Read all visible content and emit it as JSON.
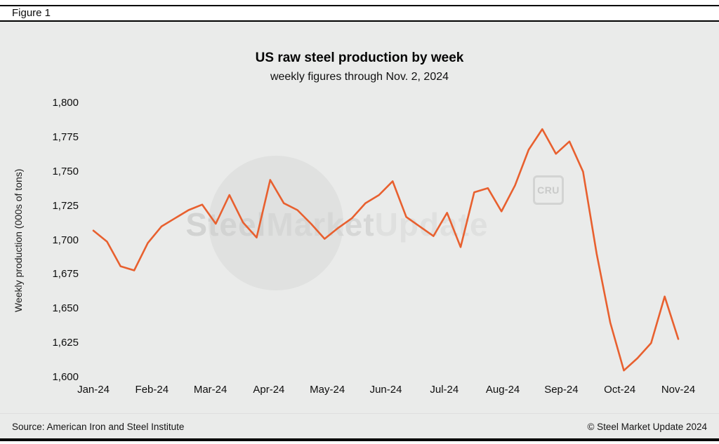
{
  "figure_label": "Figure 1",
  "footer": {
    "source": "Source: American Iron and Steel Institute",
    "copyright": "© Steel Market Update 2024"
  },
  "watermark": {
    "part1": "Steel",
    "part2": "Market",
    "part3": "Update",
    "badge": "CRU"
  },
  "colors": {
    "line": "#e8602f",
    "panel_background": "#eaebea",
    "text": "#0e0e0e",
    "watermark": "#d6d7d6"
  },
  "chart_data": {
    "type": "line",
    "title": "US raw steel production by week",
    "subtitle": "weekly figures through Nov. 2, 2024",
    "xlabel": "",
    "ylabel": "Weekly production (000s of tons)",
    "ylim": [
      1600,
      1800
    ],
    "y_ticks": [
      1600,
      1625,
      1650,
      1675,
      1700,
      1725,
      1750,
      1775,
      1800
    ],
    "x_tick_labels": [
      "Jan-24",
      "Feb-24",
      "Mar-24",
      "Apr-24",
      "May-24",
      "Jun-24",
      "Jul-24",
      "Aug-24",
      "Sep-24",
      "Oct-24",
      "Nov-24"
    ],
    "grid": false,
    "legend_position": "none",
    "series": [
      {
        "name": "US weekly raw steel production (000s of tons)",
        "x_unit": "week index, Jan-24 through Nov-24, evenly spaced",
        "values": [
          1707,
          1699,
          1681,
          1678,
          1698,
          1710,
          1716,
          1722,
          1726,
          1712,
          1733,
          1713,
          1702,
          1744,
          1727,
          1722,
          1712,
          1701,
          1709,
          1716,
          1727,
          1733,
          1743,
          1717,
          1710,
          1703,
          1720,
          1695,
          1735,
          1738,
          1721,
          1740,
          1766,
          1781,
          1763,
          1772,
          1750,
          1690,
          1640,
          1605,
          1614,
          1625,
          1659,
          1628
        ]
      }
    ]
  }
}
